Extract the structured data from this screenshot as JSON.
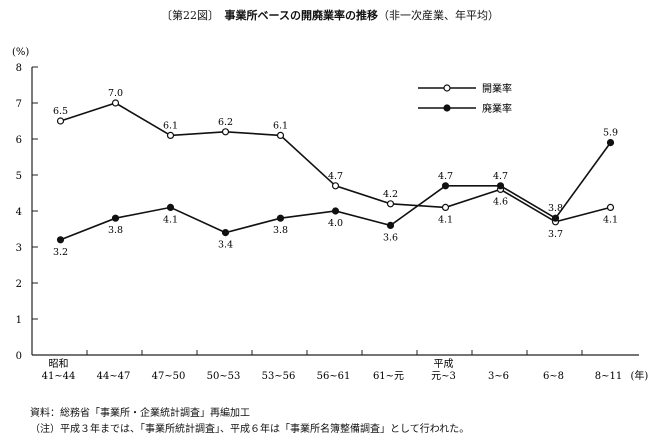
{
  "chart_data": {
    "type": "line",
    "title_prefix": "〔第22図〕",
    "title": "事業所ベースの開廃業率の推移",
    "subtitle": "（非一次産業、年平均）",
    "ylabel": "(%)",
    "xlabel": "(年)",
    "ylim": [
      0,
      8
    ],
    "yticks": [
      "0",
      "1",
      "2",
      "3",
      "4",
      "5",
      "6",
      "7",
      "8"
    ],
    "era_labels": {
      "0": "昭和",
      "7": "平成"
    },
    "categories": [
      "41~44",
      "44~47",
      "47~50",
      "50~53",
      "53~56",
      "56~61",
      "61~元",
      "元~3",
      "3~6",
      "6~8",
      "8~11"
    ],
    "series": [
      {
        "name": "開業率",
        "marker": "open-circle",
        "values": [
          6.5,
          7.0,
          6.1,
          6.2,
          6.1,
          4.7,
          4.2,
          4.1,
          4.6,
          3.7,
          4.1
        ],
        "labels": [
          "6.5",
          "7.0",
          "6.1",
          "6.2",
          "6.1",
          "4.7",
          "4.2",
          "4.1",
          "4.6",
          "3.7",
          "4.1"
        ]
      },
      {
        "name": "廃業率",
        "marker": "filled-circle",
        "values": [
          3.2,
          3.8,
          4.1,
          3.4,
          3.8,
          4.0,
          3.6,
          4.7,
          4.7,
          3.8,
          5.9
        ],
        "labels": [
          "3.2",
          "3.8",
          "4.1",
          "3.4",
          "3.8",
          "4.0",
          "3.6",
          "4.7",
          "4.7",
          "3.8",
          "5.9"
        ]
      }
    ],
    "legend_position": "top-right",
    "grid": false
  },
  "notes": {
    "source": "資料：総務省「事業所・企業統計調査」再編加工",
    "note": "（注）平成３年までは、「事業所統計調査」、平成６年は「事業所名簿整備調査」として行われた。"
  }
}
